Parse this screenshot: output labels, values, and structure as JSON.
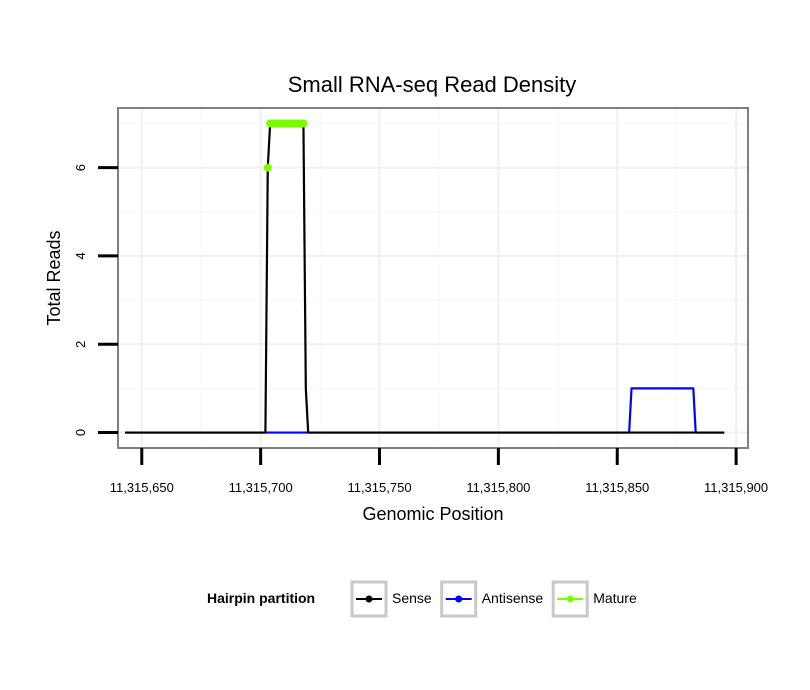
{
  "chart_data": {
    "type": "line",
    "title": "Small RNA-seq Read Density",
    "xlabel": "Genomic Position",
    "ylabel": "Total Reads",
    "xlim": [
      11315640,
      11315905
    ],
    "ylim": [
      -0.35,
      7.35
    ],
    "x_ticks": [
      11315650,
      11315700,
      11315750,
      11315800,
      11315850,
      11315900
    ],
    "x_tick_labels": [
      "11,315,650",
      "11,315,700",
      "11,315,750",
      "11,315,800",
      "11,315,850",
      "11,315,900"
    ],
    "y_ticks": [
      0,
      2,
      4,
      6
    ],
    "y_tick_labels": [
      "0",
      "2",
      "4",
      "6"
    ],
    "grid": true,
    "legend": {
      "title": "Hairpin partition",
      "position": "bottom",
      "entries": [
        "Sense",
        "Antisense",
        "Mature"
      ]
    },
    "series": [
      {
        "name": "Sense",
        "color": "#000000",
        "points": [
          [
            11315643,
            0
          ],
          [
            11315702,
            0
          ],
          [
            11315703,
            6
          ],
          [
            11315704,
            7
          ],
          [
            11315718,
            7
          ],
          [
            11315719,
            1
          ],
          [
            11315720,
            0
          ],
          [
            11315895,
            0
          ]
        ]
      },
      {
        "name": "Antisense",
        "color": "#0000ff",
        "points": [
          [
            11315643,
            0
          ],
          [
            11315855,
            0
          ],
          [
            11315856,
            1
          ],
          [
            11315882,
            1
          ],
          [
            11315883,
            0
          ],
          [
            11315895,
            0
          ]
        ]
      },
      {
        "name": "Mature",
        "color": "#7cfc00",
        "marker_points": [
          [
            11315703,
            6
          ],
          [
            11315704,
            7
          ],
          [
            11315705,
            7
          ],
          [
            11315706,
            7
          ],
          [
            11315707,
            7
          ],
          [
            11315708,
            7
          ],
          [
            11315709,
            7
          ],
          [
            11315710,
            7
          ],
          [
            11315711,
            7
          ],
          [
            11315712,
            7
          ],
          [
            11315713,
            7
          ],
          [
            11315714,
            7
          ],
          [
            11315715,
            7
          ],
          [
            11315716,
            7
          ],
          [
            11315717,
            7
          ],
          [
            11315718,
            7
          ]
        ]
      }
    ]
  }
}
